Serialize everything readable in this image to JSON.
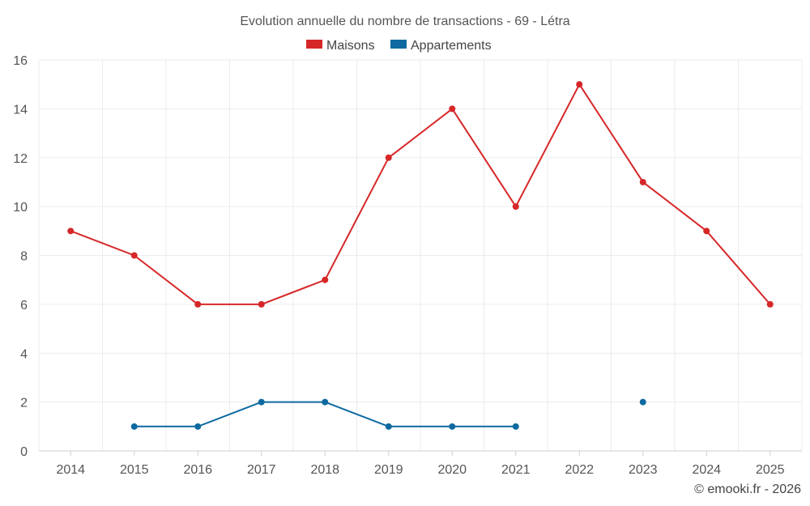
{
  "chart_data": {
    "type": "line",
    "title": "Evolution annuelle du nombre de transactions - 69 - Létra",
    "categories": [
      "2014",
      "2015",
      "2016",
      "2017",
      "2018",
      "2019",
      "2020",
      "2021",
      "2022",
      "2023",
      "2024",
      "2025"
    ],
    "ylim": [
      0,
      16
    ],
    "yticks": [
      0,
      2,
      4,
      6,
      8,
      10,
      12,
      14,
      16
    ],
    "grid": true,
    "legend_position": "top-center",
    "series": [
      {
        "name": "Maisons",
        "color": "#d62728",
        "values": [
          9,
          8,
          6,
          6,
          7,
          12,
          14,
          10,
          15,
          11,
          9,
          6
        ]
      },
      {
        "name": "Appartements",
        "color": "#0e6aa1",
        "values": [
          null,
          1,
          1,
          2,
          2,
          1,
          1,
          1,
          null,
          2,
          null,
          null
        ]
      }
    ]
  },
  "credit": "© emooki.fr - 2026"
}
